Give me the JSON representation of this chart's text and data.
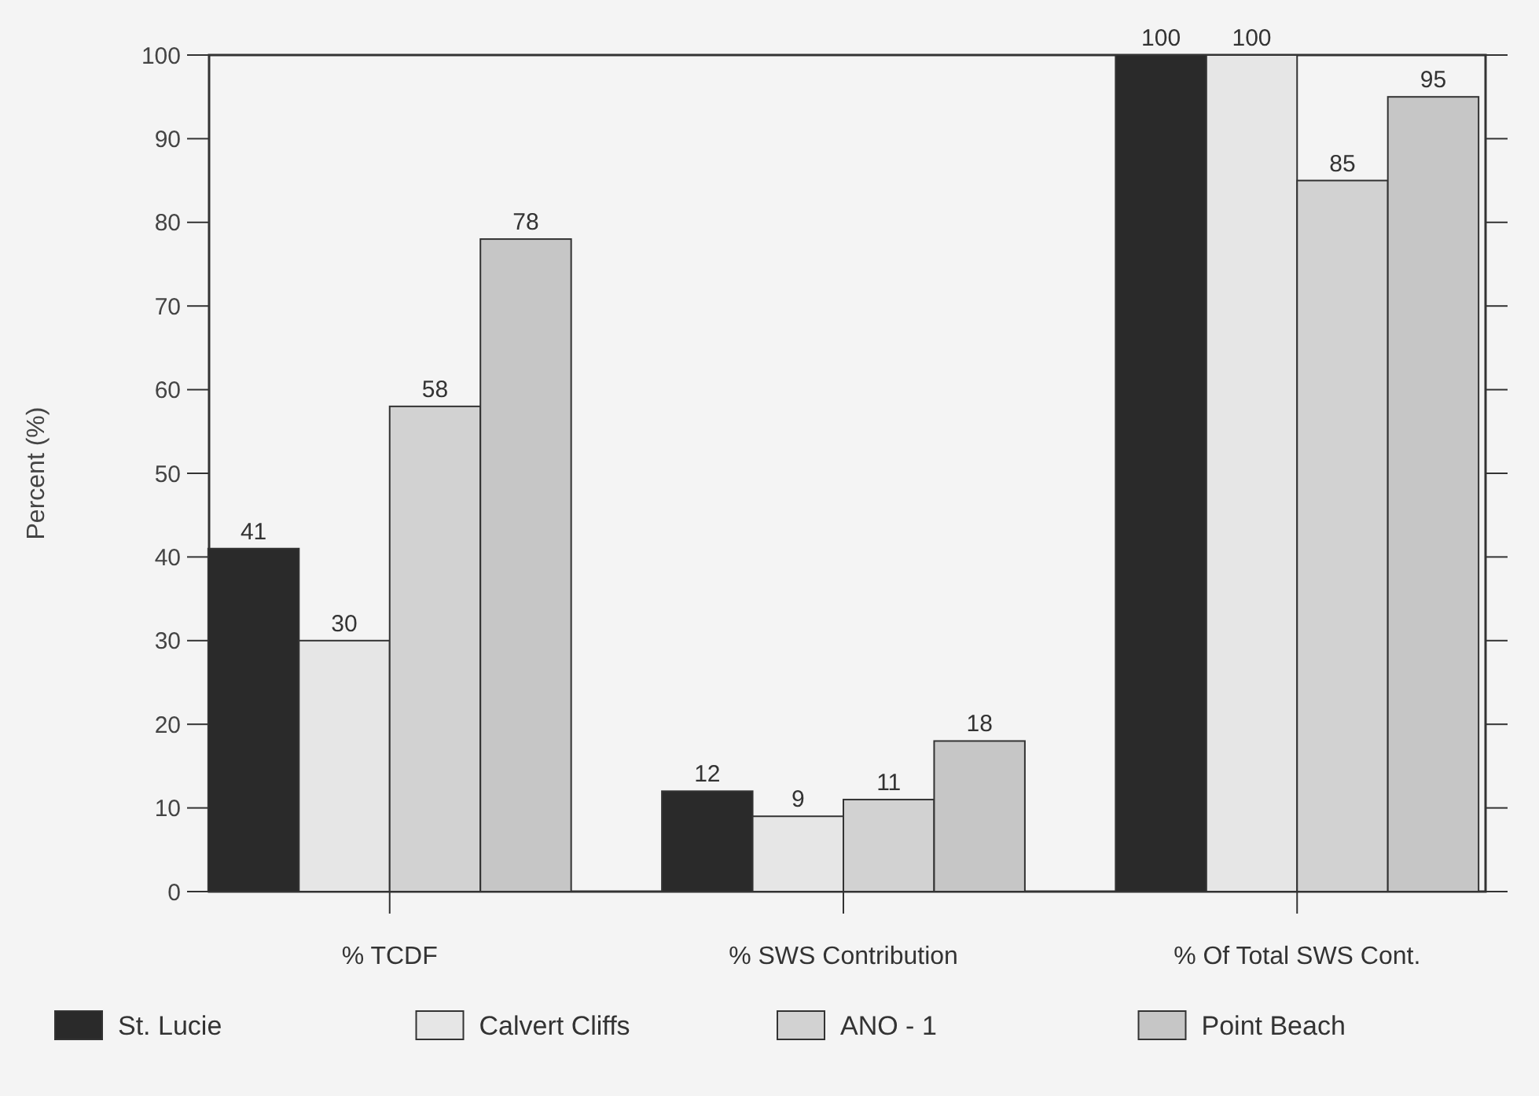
{
  "chart_data": {
    "type": "bar",
    "ylabel": "Percent (%)",
    "categories": [
      "% TCDF",
      "% SWS Contribution",
      "% Of Total SWS Cont."
    ],
    "series": [
      {
        "name": "St. Lucie",
        "color": "#2a2a2a",
        "values": [
          41,
          12,
          100
        ]
      },
      {
        "name": "Calvert Cliffs",
        "color": "#e6e6e6",
        "values": [
          30,
          9,
          100
        ]
      },
      {
        "name": "ANO - 1",
        "color": "#d2d2d2",
        "values": [
          58,
          11,
          85
        ]
      },
      {
        "name": "Point Beach",
        "color": "#c6c6c6",
        "values": [
          78,
          18,
          95
        ]
      }
    ],
    "ylim": [
      0,
      100
    ],
    "yticks": [
      0,
      10,
      20,
      30,
      40,
      50,
      60,
      70,
      80,
      90,
      100
    ],
    "data_labels": true,
    "legend": "bottom",
    "grid": false
  }
}
